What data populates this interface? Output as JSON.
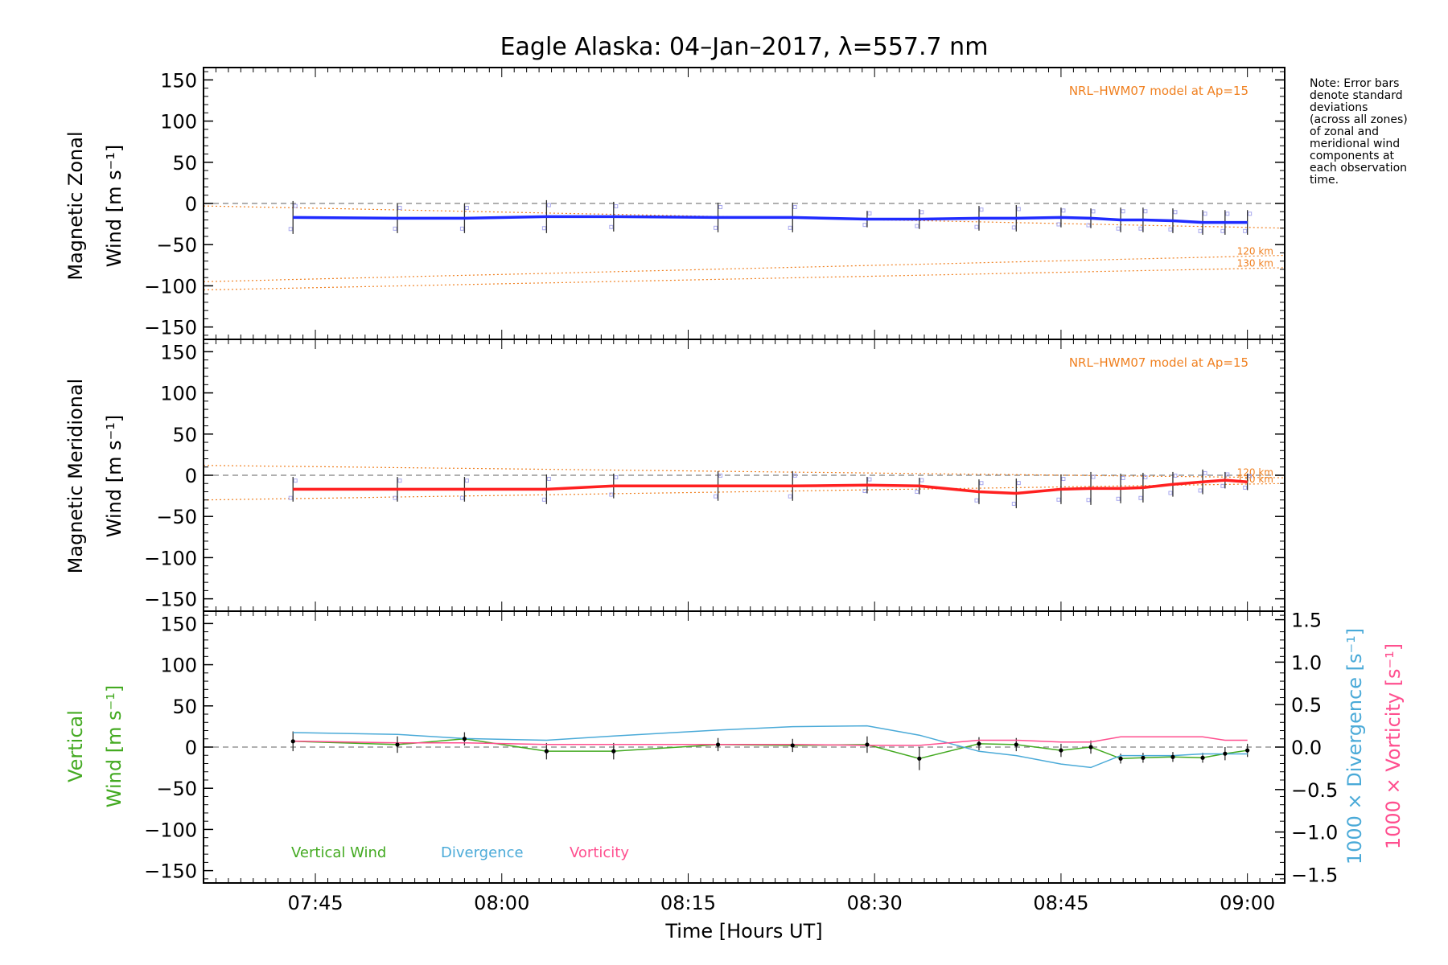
{
  "title": "Eagle Alaska: 04–Jan–2017, λ=557.7 nm",
  "note": [
    "Note: Error bars",
    "denote standard",
    "deviations",
    "(across all zones)",
    "of zonal and",
    "meridional wind",
    "components at",
    "each observation",
    "time."
  ],
  "xaxis": {
    "label": "Time [Hours UT]",
    "ticks": [
      {
        "t": 7.75,
        "label": "07:45"
      },
      {
        "t": 8.0,
        "label": "08:00"
      },
      {
        "t": 8.25,
        "label": "08:15"
      },
      {
        "t": 8.5,
        "label": "08:30"
      },
      {
        "t": 8.75,
        "label": "08:45"
      },
      {
        "t": 9.0,
        "label": "09:00"
      }
    ]
  },
  "yticks": [
    {
      "v": 150,
      "label": "150"
    },
    {
      "v": 100,
      "label": "100"
    },
    {
      "v": 50,
      "label": "50"
    },
    {
      "v": 0,
      "label": "0"
    },
    {
      "v": -50,
      "label": "−50"
    },
    {
      "v": -100,
      "label": "−100"
    },
    {
      "v": -150,
      "label": "−150"
    }
  ],
  "y2ticks": [
    {
      "v": 1.5,
      "label": "1.5"
    },
    {
      "v": 1.0,
      "label": "1.0"
    },
    {
      "v": 0.5,
      "label": "0.5"
    },
    {
      "v": 0.0,
      "label": "0.0"
    },
    {
      "v": -0.5,
      "label": "−0.5"
    },
    {
      "v": -1.0,
      "label": "−1.0"
    },
    {
      "v": -1.5,
      "label": "−1.5"
    }
  ],
  "colors": {
    "axes": "#000000",
    "zonal": "#1f2bff",
    "meridional": "#ff2020",
    "model": "#f08020",
    "zero": "#808080",
    "errorbar": "#303030",
    "samples": "#a8a8ee",
    "vertical": "#44aa22",
    "divergence": "#4aaad8",
    "vorticity": "#ff4f8f"
  },
  "panels": {
    "zonal": {
      "ylabel_line1": "Magnetic Zonal",
      "ylabel_line2": "Wind [m s⁻¹]",
      "model_label": "NRL–HWM07 model at Ap=15",
      "model_curves": [
        {
          "label": "120 km",
          "t": [
            7.6,
            9.05
          ],
          "v": [
            -95,
            -63
          ]
        },
        {
          "label": "130 km",
          "t": [
            7.6,
            9.05
          ],
          "v": [
            -105,
            -78
          ]
        },
        {
          "label": "",
          "t": [
            7.6,
            9.05
          ],
          "v": [
            -3,
            -30
          ]
        }
      ]
    },
    "meridional": {
      "ylabel_line1": "Magnetic Meridional",
      "ylabel_line2": "Wind [m s⁻¹]",
      "model_label": "NRL–HWM07 model at Ap=15",
      "model_curves": [
        {
          "label": "120 km",
          "t": [
            7.6,
            9.05
          ],
          "v": [
            12,
            -3
          ]
        },
        {
          "label": "130 km",
          "t": [
            7.6,
            9.05
          ],
          "v": [
            -30,
            -10
          ]
        }
      ]
    },
    "vertical": {
      "ylabel_left1": "Vertical",
      "ylabel_left2": "Wind [m s⁻¹]",
      "ylabel_right1": "1000 × Divergence [s⁻¹]",
      "ylabel_right2": "1000 × Vorticity [s⁻¹]",
      "legend": [
        {
          "label": "Vertical Wind",
          "color": "#44aa22"
        },
        {
          "label": "Divergence",
          "color": "#4aaad8"
        },
        {
          "label": "Vorticity",
          "color": "#ff4f8f"
        }
      ]
    }
  },
  "chart_data": {
    "type": "line",
    "x_unit": "hours UT",
    "xlim": [
      7.6,
      9.05
    ],
    "ylim": [
      -165,
      165
    ],
    "y2lim": [
      -1.6,
      1.6
    ],
    "t": [
      7.72,
      7.86,
      7.95,
      8.06,
      8.15,
      8.29,
      8.39,
      8.49,
      8.56,
      8.64,
      8.69,
      8.75,
      8.79,
      8.83,
      8.86,
      8.9,
      8.94,
      8.97,
      9.0
    ],
    "zonal": [
      -17,
      -18,
      -18,
      -16,
      -16,
      -17,
      -17,
      -19,
      -19,
      -18,
      -18,
      -17,
      -18,
      -20,
      -20,
      -21,
      -23,
      -23,
      -23
    ],
    "zonal_err": [
      20,
      18,
      18,
      20,
      18,
      18,
      18,
      10,
      12,
      15,
      16,
      12,
      12,
      15,
      15,
      15,
      15,
      15,
      15
    ],
    "meridional": [
      -17,
      -17,
      -17,
      -17,
      -13,
      -13,
      -13,
      -12,
      -13,
      -20,
      -22,
      -17,
      -16,
      -16,
      -15,
      -11,
      -8,
      -6,
      -8
    ],
    "meridional_err": [
      15,
      15,
      15,
      18,
      15,
      18,
      18,
      10,
      10,
      15,
      18,
      18,
      20,
      18,
      18,
      15,
      15,
      10,
      10
    ],
    "vertical": [
      7,
      3,
      10,
      -5,
      -5,
      3,
      2,
      3,
      -14,
      4,
      3,
      -4,
      0,
      -14,
      -13,
      -12,
      -13,
      -8,
      -4
    ],
    "vertical_err": [
      12,
      10,
      8,
      10,
      10,
      8,
      8,
      10,
      14,
      8,
      8,
      8,
      8,
      6,
      6,
      6,
      6,
      8,
      8
    ],
    "divergence": [
      0.17,
      0.15,
      0.1,
      0.08,
      0.13,
      0.2,
      0.24,
      0.25,
      0.14,
      -0.05,
      -0.1,
      -0.2,
      -0.24,
      -0.1,
      -0.1,
      -0.1,
      -0.08,
      -0.08,
      -0.08
    ],
    "vorticity": [
      0.07,
      0.05,
      0.05,
      0.03,
      0.03,
      0.03,
      0.03,
      0.02,
      0.02,
      0.08,
      0.08,
      0.06,
      0.06,
      0.12,
      0.12,
      0.12,
      0.12,
      0.08,
      0.08
    ]
  }
}
